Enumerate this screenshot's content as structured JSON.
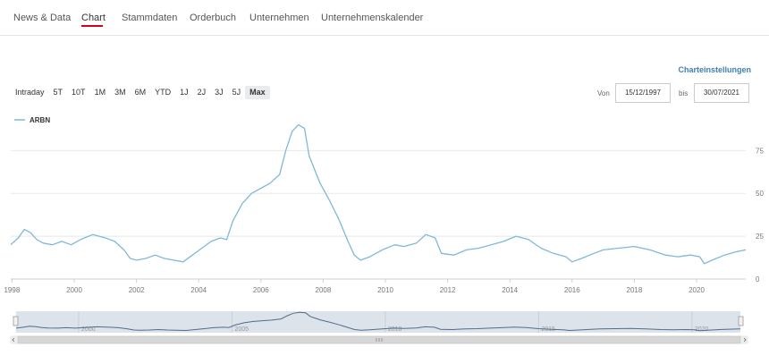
{
  "tabs": [
    {
      "label": "News & Data",
      "active": false
    },
    {
      "label": "Chart",
      "active": true
    },
    {
      "label": "Stammdaten",
      "active": false
    },
    {
      "label": "Orderbuch",
      "active": false
    },
    {
      "label": "Unternehmen",
      "active": false
    },
    {
      "label": "Unternehmenskalender",
      "active": false
    }
  ],
  "settings_label": "Charteinstellungen",
  "range_buttons": [
    "Intraday",
    "5T",
    "10T",
    "1M",
    "3M",
    "6M",
    "YTD",
    "1J",
    "2J",
    "3J",
    "5J",
    "Max"
  ],
  "range_active": "Max",
  "date_from_label": "Von",
  "date_from": "15/12/1997",
  "date_to_label": "bis",
  "date_to": "30/07/2021",
  "colors": {
    "series": "#7fb8dc",
    "accent": "#d0021b",
    "link": "#3d7fb3",
    "navigator_mask": "#dde3ea"
  },
  "chart_data": {
    "type": "line",
    "title": "",
    "xlabel": "",
    "ylabel": "",
    "series": [
      {
        "name": "ARBN",
        "x": [
          1997.96,
          1998.2,
          1998.4,
          1998.6,
          1998.8,
          1999.0,
          1999.3,
          1999.6,
          1999.9,
          2000.2,
          2000.6,
          2001.0,
          2001.3,
          2001.6,
          2001.8,
          2002.0,
          2002.3,
          2002.6,
          2002.9,
          2003.2,
          2003.5,
          2003.8,
          2004.1,
          2004.4,
          2004.7,
          2004.9,
          2005.1,
          2005.4,
          2005.7,
          2006.0,
          2006.3,
          2006.6,
          2006.8,
          2007.0,
          2007.2,
          2007.4,
          2007.55,
          2007.7,
          2007.9,
          2008.2,
          2008.5,
          2008.8,
          2009.0,
          2009.2,
          2009.5,
          2009.9,
          2010.3,
          2010.6,
          2011.0,
          2011.3,
          2011.6,
          2011.8,
          2012.2,
          2012.6,
          2013.0,
          2013.4,
          2013.8,
          2014.2,
          2014.6,
          2015.0,
          2015.4,
          2015.8,
          2016.0,
          2016.3,
          2016.7,
          2017.0,
          2017.5,
          2018.0,
          2018.5,
          2019.0,
          2019.4,
          2019.8,
          2020.1,
          2020.25,
          2020.5,
          2020.9,
          2021.3,
          2021.58
        ],
        "y": [
          20,
          24,
          29,
          27,
          23,
          21,
          20,
          22,
          20,
          23,
          26,
          24,
          22,
          17,
          12,
          11,
          12,
          14,
          12,
          11,
          10,
          14,
          18,
          22,
          24,
          23,
          34,
          44,
          50,
          53,
          56,
          61,
          75,
          86,
          90,
          88,
          72,
          65,
          56,
          46,
          35,
          22,
          14,
          11,
          13,
          17,
          20,
          19,
          21,
          26,
          24,
          15,
          14,
          17,
          18,
          20,
          22,
          25,
          23,
          18,
          15,
          13,
          10,
          12,
          15,
          17,
          18,
          19,
          17,
          14,
          13,
          14,
          13,
          9,
          11,
          14,
          16,
          17
        ]
      }
    ],
    "x_ticks": [
      "1998",
      "2000",
      "2002",
      "2004",
      "2006",
      "2008",
      "2010",
      "2012",
      "2014",
      "2016",
      "2018",
      "2020"
    ],
    "y_ticks": [
      "0",
      "25",
      "50",
      "75"
    ],
    "xlim": [
      1997.96,
      2021.58
    ],
    "ylim": [
      0,
      95
    ],
    "grid": true,
    "legend": "top-left",
    "navigator_ticks": [
      "2000",
      "2005",
      "2010",
      "2015",
      "2020"
    ]
  }
}
